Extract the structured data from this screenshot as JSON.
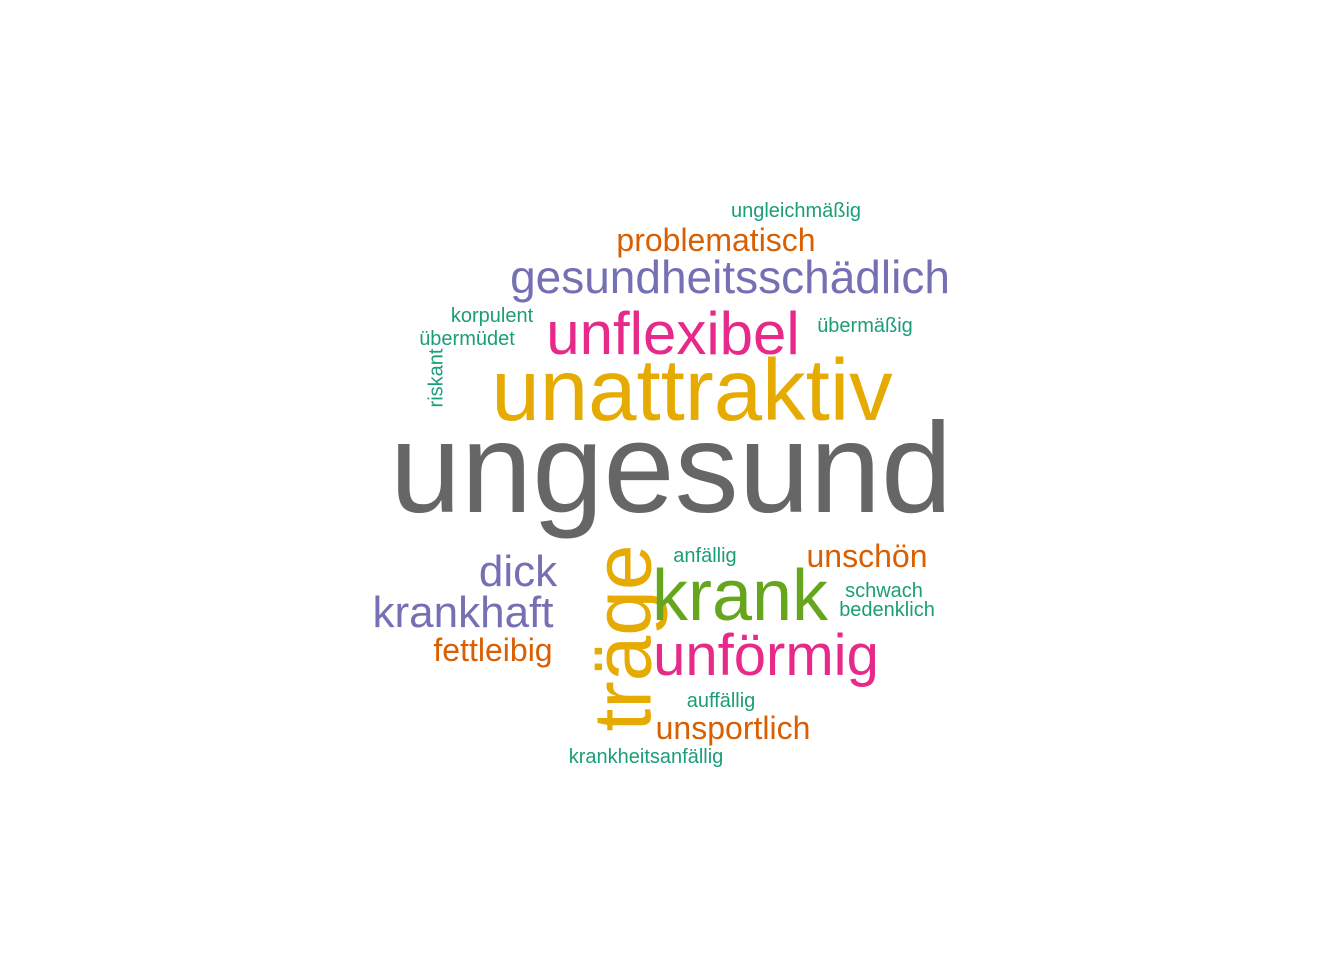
{
  "chart_data": {
    "type": "wordcloud",
    "colors": {
      "teal": "#1b9e77",
      "orange": "#d95f02",
      "purple": "#7570b3",
      "magenta": "#e7298a",
      "green": "#66a61e",
      "gold": "#e6ab02",
      "gray": "#666666"
    },
    "words": [
      {
        "text": "ungesund",
        "weight": 9.5,
        "color": "#666666"
      },
      {
        "text": "unattraktiv",
        "weight": 7.5,
        "color": "#e6ab02"
      },
      {
        "text": "träge",
        "weight": 6.5,
        "color": "#e6ab02"
      },
      {
        "text": "krank",
        "weight": 5.5,
        "color": "#66a61e"
      },
      {
        "text": "unflexibel",
        "weight": 4.8,
        "color": "#e7298a"
      },
      {
        "text": "unförmig",
        "weight": 4.6,
        "color": "#e7298a"
      },
      {
        "text": "gesundheitsschädlich",
        "weight": 4.0,
        "color": "#7570b3"
      },
      {
        "text": "krankhaft",
        "weight": 3.8,
        "color": "#7570b3"
      },
      {
        "text": "dick",
        "weight": 3.8,
        "color": "#7570b3"
      },
      {
        "text": "problematisch",
        "weight": 2.8,
        "color": "#d95f02"
      },
      {
        "text": "unschön",
        "weight": 2.8,
        "color": "#d95f02"
      },
      {
        "text": "unsportlich",
        "weight": 2.8,
        "color": "#d95f02"
      },
      {
        "text": "fettleibig",
        "weight": 2.8,
        "color": "#d95f02"
      },
      {
        "text": "ungleichmäßig",
        "weight": 1.8,
        "color": "#1b9e77"
      },
      {
        "text": "korpulent",
        "weight": 1.8,
        "color": "#1b9e77"
      },
      {
        "text": "übermüdet",
        "weight": 1.8,
        "color": "#1b9e77"
      },
      {
        "text": "übermäßig",
        "weight": 1.8,
        "color": "#1b9e77"
      },
      {
        "text": "riskant",
        "weight": 1.8,
        "color": "#1b9e77"
      },
      {
        "text": "anfällig",
        "weight": 1.8,
        "color": "#1b9e77"
      },
      {
        "text": "schwach",
        "weight": 1.8,
        "color": "#1b9e77"
      },
      {
        "text": "bedenklich",
        "weight": 1.8,
        "color": "#1b9e77"
      },
      {
        "text": "auffällig",
        "weight": 1.8,
        "color": "#1b9e77"
      },
      {
        "text": "krankheitsanfällig",
        "weight": 1.8,
        "color": "#1b9e77"
      }
    ]
  }
}
